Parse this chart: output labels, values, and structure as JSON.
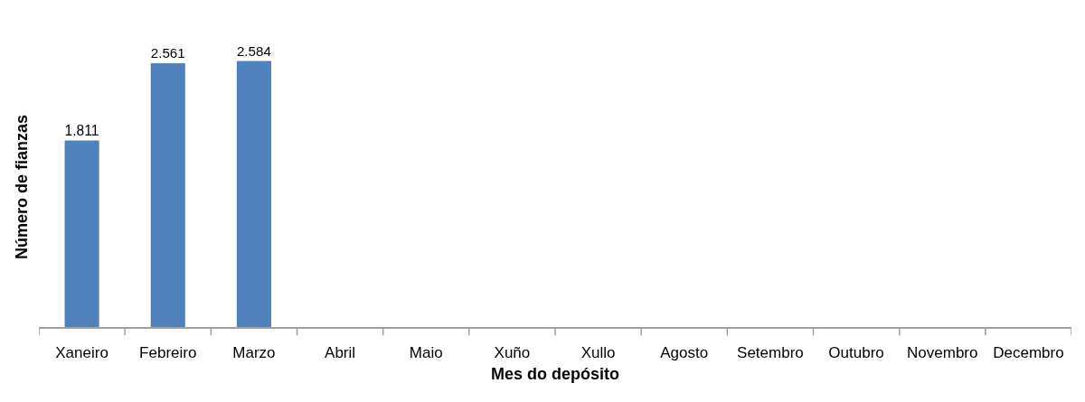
{
  "chart_data": {
    "type": "bar",
    "xlabel": "Mes do depósito",
    "ylabel": "Número de fianzas",
    "categories": [
      "Xaneiro",
      "Febreiro",
      "Marzo",
      "Abril",
      "Maio",
      "Xuño",
      "Xullo",
      "Agosto",
      "Setembro",
      "Outubro",
      "Novembro",
      "Decembro"
    ],
    "values": [
      1811,
      2561,
      2584,
      null,
      null,
      null,
      null,
      null,
      null,
      null,
      null,
      null
    ],
    "value_labels": [
      "1.811",
      "2.561",
      "2.584",
      null,
      null,
      null,
      null,
      null,
      null,
      null,
      null,
      null
    ],
    "color": "#4f81bd",
    "tick_labels": "x"
  }
}
